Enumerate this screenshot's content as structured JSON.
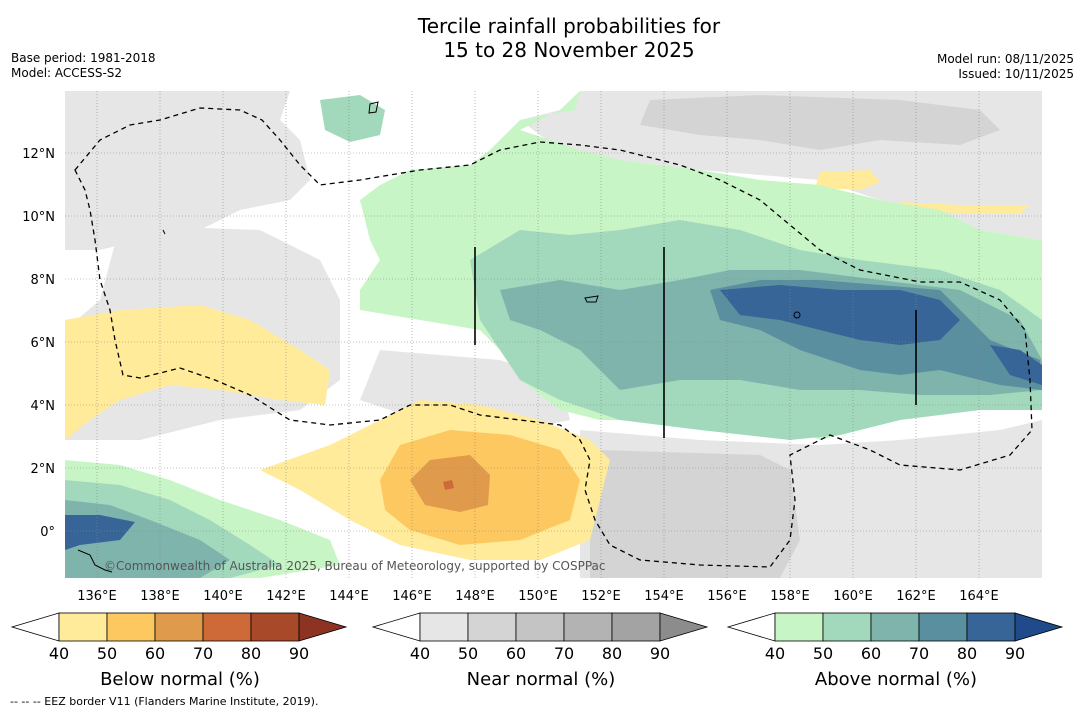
{
  "title": {
    "line1": "Tercile rainfall probabilities for",
    "line2": "15 to 28 November 2025"
  },
  "meta": {
    "base_period": "Base period: 1981-2018",
    "model": "Model: ACCESS-S2",
    "model_run": "Model run: 08/11/2025",
    "issued": "Issued: 10/11/2025"
  },
  "map": {
    "credit": "©Commonwealth of Australia 2025, Bureau of Meteorology, supported by COSPPac",
    "lon_labels": [
      "136°E",
      "138°E",
      "140°E",
      "142°E",
      "144°E",
      "146°E",
      "148°E",
      "150°E",
      "152°E",
      "154°E",
      "156°E",
      "158°E",
      "160°E",
      "162°E",
      "164°E"
    ],
    "lat_labels": [
      "12°N",
      "10°N",
      "8°N",
      "6°N",
      "4°N",
      "2°N",
      "0°"
    ]
  },
  "colorbars": [
    {
      "title": "Below normal (%)",
      "ticks": [
        "40",
        "50",
        "60",
        "70",
        "80",
        "90"
      ],
      "colors": [
        "#ffffff",
        "#ffeb99",
        "#fdc860",
        "#e09a4b",
        "#cd6a38",
        "#a84a2a",
        "#8c3322"
      ]
    },
    {
      "title": "Near normal (%)",
      "ticks": [
        "40",
        "50",
        "60",
        "70",
        "80",
        "90"
      ],
      "colors": [
        "#ffffff",
        "#e6e6e6",
        "#d4d4d4",
        "#c4c4c4",
        "#b3b3b3",
        "#a3a3a3",
        "#8c8c8c"
      ]
    },
    {
      "title": "Above normal (%)",
      "ticks": [
        "40",
        "50",
        "60",
        "70",
        "80",
        "90"
      ],
      "colors": [
        "#ffffff",
        "#c8f5c6",
        "#a2d9bc",
        "#7fb4ad",
        "#5a8fa0",
        "#376597",
        "#1f4b8a"
      ]
    }
  ],
  "footer": "--  --  -- EEZ border V11 (Flanders Marine Institute, 2019)."
}
